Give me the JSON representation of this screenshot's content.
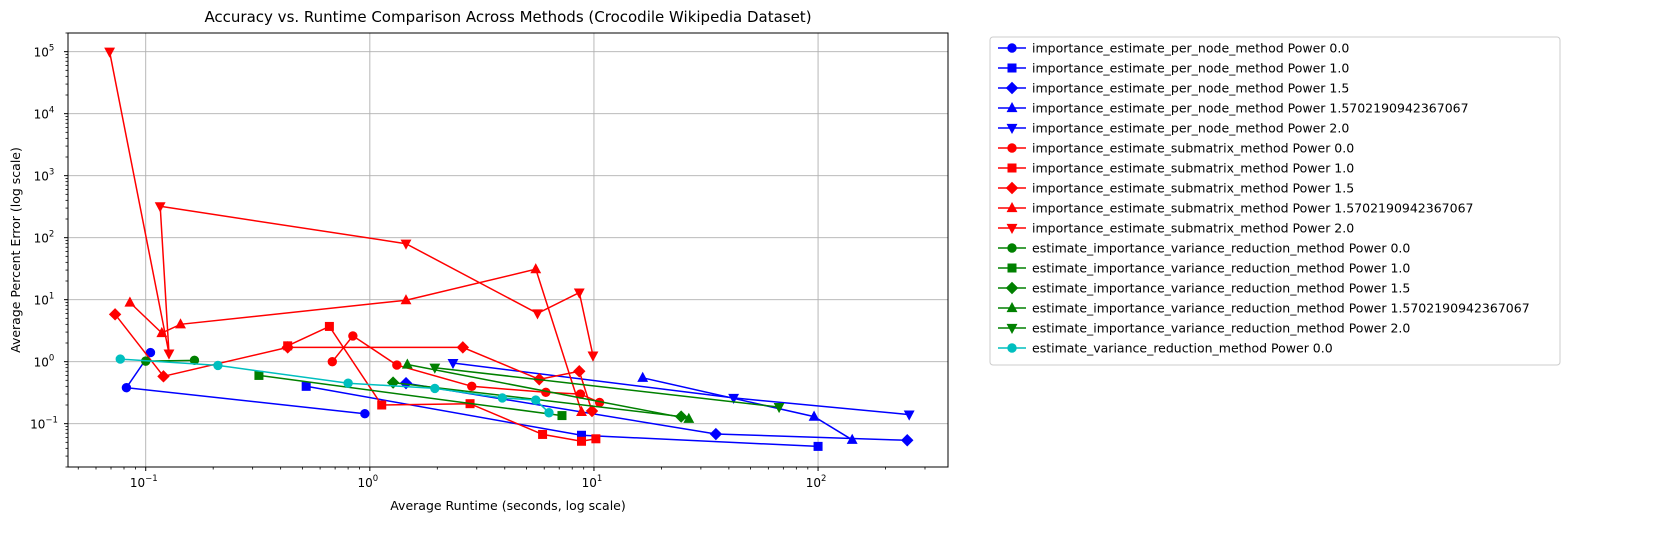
{
  "chart_data": {
    "type": "line",
    "title": "Accuracy vs. Runtime Comparison Across Methods (Crocodile Wikipedia Dataset)",
    "xlabel": "Average Runtime (seconds, log scale)",
    "ylabel": "Average Percent Error (log scale)",
    "xscale": "log",
    "yscale": "log",
    "xlim": [
      0.045,
      380
    ],
    "ylim": [
      0.02,
      200000
    ],
    "xticks": [
      {
        "value": 0.1,
        "base": "10",
        "exp": "−1"
      },
      {
        "value": 1,
        "base": "10",
        "exp": "0"
      },
      {
        "value": 10,
        "base": "10",
        "exp": "1"
      },
      {
        "value": 100,
        "base": "10",
        "exp": "2"
      }
    ],
    "yticks": [
      {
        "value": 0.1,
        "base": "10",
        "exp": "−1"
      },
      {
        "value": 1,
        "base": "10",
        "exp": "0"
      },
      {
        "value": 10,
        "base": "10",
        "exp": "1"
      },
      {
        "value": 100,
        "base": "10",
        "exp": "2"
      },
      {
        "value": 1000,
        "base": "10",
        "exp": "3"
      },
      {
        "value": 10000,
        "base": "10",
        "exp": "4"
      },
      {
        "value": 100000,
        "base": "10",
        "exp": "5"
      }
    ],
    "grid": true,
    "legend_position": "outside-right",
    "series": [
      {
        "name": "importance_estimate_per_node_method Power 0.0",
        "color": "#0000ff",
        "marker": "circle",
        "points": [
          [
            0.105,
            1.4
          ],
          [
            0.082,
            0.38
          ],
          [
            0.95,
            0.145
          ]
        ]
      },
      {
        "name": "importance_estimate_per_node_method Power 1.0",
        "color": "#0000ff",
        "marker": "square",
        "points": [
          [
            0.52,
            0.4
          ],
          [
            8.8,
            0.065
          ],
          [
            100,
            0.043
          ]
        ]
      },
      {
        "name": "importance_estimate_per_node_method Power 1.5",
        "color": "#0000ff",
        "marker": "diamond",
        "points": [
          [
            1.45,
            0.45
          ],
          [
            35,
            0.068
          ],
          [
            250,
            0.054
          ]
        ]
      },
      {
        "name": "importance_estimate_per_node_method Power 1.5702190942367067",
        "color": "#0000ff",
        "marker": "triangle-up",
        "points": [
          [
            16.5,
            0.55
          ],
          [
            96,
            0.13
          ],
          [
            142,
            0.055
          ]
        ]
      },
      {
        "name": "importance_estimate_per_node_method Power 2.0",
        "color": "#0000ff",
        "marker": "triangle-down",
        "points": [
          [
            2.35,
            0.95
          ],
          [
            42,
            0.26
          ],
          [
            255,
            0.14
          ]
        ]
      },
      {
        "name": "importance_estimate_submatrix_method Power 0.0",
        "color": "#ff0000",
        "marker": "circle",
        "points": [
          [
            0.68,
            1.0
          ],
          [
            0.84,
            2.6
          ],
          [
            1.32,
            0.88
          ],
          [
            2.85,
            0.4
          ],
          [
            6.1,
            0.32
          ],
          [
            8.7,
            0.3
          ],
          [
            10.6,
            0.22
          ]
        ]
      },
      {
        "name": "importance_estimate_submatrix_method Power 1.0",
        "color": "#ff0000",
        "marker": "square",
        "points": [
          [
            0.43,
            1.8
          ],
          [
            0.66,
            3.7
          ],
          [
            1.13,
            0.2
          ],
          [
            2.8,
            0.21
          ],
          [
            5.9,
            0.067
          ],
          [
            8.8,
            0.052
          ],
          [
            10.2,
            0.057
          ]
        ]
      },
      {
        "name": "importance_estimate_submatrix_method Power 1.5",
        "color": "#ff0000",
        "marker": "diamond",
        "points": [
          [
            0.073,
            5.8
          ],
          [
            0.12,
            0.58
          ],
          [
            0.43,
            1.7
          ],
          [
            2.6,
            1.7
          ],
          [
            5.7,
            0.52
          ],
          [
            8.6,
            0.7
          ],
          [
            9.8,
            0.16
          ]
        ]
      },
      {
        "name": "importance_estimate_submatrix_method Power 1.5702190942367067",
        "color": "#ff0000",
        "marker": "triangle-up",
        "points": [
          [
            0.085,
            9.0
          ],
          [
            0.118,
            2.9
          ],
          [
            0.143,
            4.0
          ],
          [
            1.45,
            9.8
          ],
          [
            5.5,
            31
          ],
          [
            8.8,
            0.155
          ]
        ]
      },
      {
        "name": "importance_estimate_submatrix_method Power 2.0",
        "color": "#ff0000",
        "marker": "triangle-down",
        "points": [
          [
            0.069,
            100000
          ],
          [
            0.127,
            1.35
          ],
          [
            0.116,
            320
          ],
          [
            1.45,
            80
          ],
          [
            5.6,
            6.0
          ],
          [
            8.6,
            13
          ],
          [
            9.9,
            1.25
          ]
        ]
      },
      {
        "name": "estimate_importance_variance_reduction_method Power 0.0",
        "color": "#008000",
        "marker": "circle",
        "points": [
          [
            0.1,
            1.02
          ],
          [
            0.165,
            1.05
          ]
        ]
      },
      {
        "name": "estimate_importance_variance_reduction_method Power 1.0",
        "color": "#008000",
        "marker": "square",
        "points": [
          [
            0.32,
            0.6
          ],
          [
            7.2,
            0.135
          ]
        ]
      },
      {
        "name": "estimate_importance_variance_reduction_method Power 1.5",
        "color": "#008000",
        "marker": "diamond",
        "points": [
          [
            1.27,
            0.46
          ],
          [
            24.5,
            0.13
          ]
        ]
      },
      {
        "name": "estimate_importance_variance_reduction_method Power 1.5702190942367067",
        "color": "#008000",
        "marker": "triangle-up",
        "points": [
          [
            1.47,
            0.9
          ],
          [
            26.5,
            0.12
          ]
        ]
      },
      {
        "name": "estimate_importance_variance_reduction_method Power 2.0",
        "color": "#008000",
        "marker": "triangle-down",
        "points": [
          [
            1.95,
            0.8
          ],
          [
            67,
            0.185
          ]
        ]
      },
      {
        "name": "estimate_variance_reduction_method Power 0.0",
        "color": "#00bfbf",
        "marker": "circle",
        "points": [
          [
            0.077,
            1.1
          ],
          [
            0.21,
            0.87
          ],
          [
            0.8,
            0.45
          ],
          [
            1.95,
            0.37
          ],
          [
            3.9,
            0.26
          ],
          [
            5.5,
            0.24
          ],
          [
            6.3,
            0.15
          ]
        ]
      }
    ]
  }
}
